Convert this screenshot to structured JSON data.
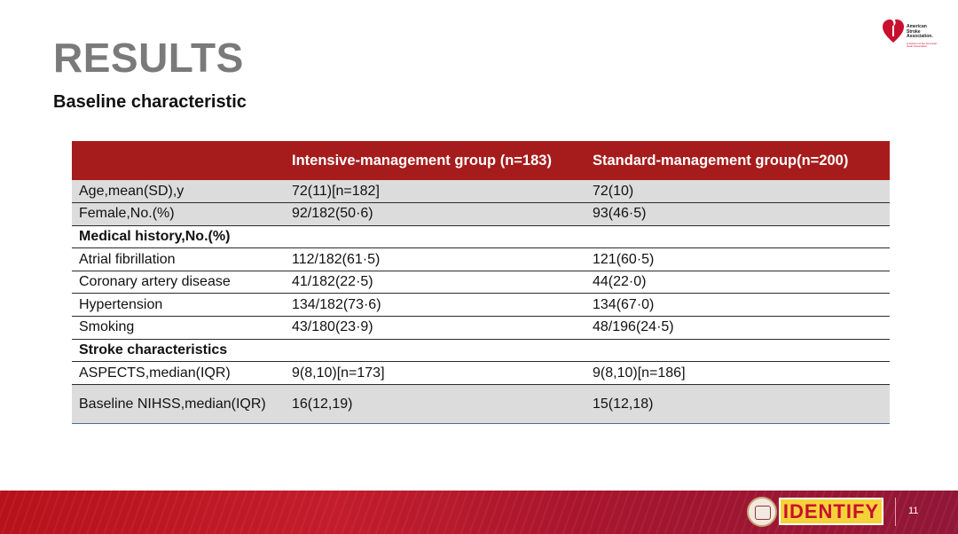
{
  "slide": {
    "title": "RESULTS",
    "subtitle": "Baseline characteristic",
    "page_number": "11"
  },
  "logos": {
    "asa": {
      "icon": "heart-torch-icon",
      "lines": [
        "American",
        "Stroke",
        "Association."
      ],
      "tagline": "A division of the American Heart Association",
      "color": "#c8102e"
    },
    "identify": {
      "text": "IDENTIFY",
      "bg": "#f6d23a",
      "text_color": "#c8102e"
    },
    "seal": {
      "icon": "university-seal-icon"
    }
  },
  "colors": {
    "header_bg": "#a61c1c",
    "shade_bg": "#dcdcdc",
    "title": "#7a7a7a",
    "footer": "#b5121b"
  },
  "table": {
    "headers": [
      "",
      "Intensive-management group (n=183)",
      "Standard-management group(n=200)"
    ],
    "rows": [
      {
        "cells": [
          "Age,mean(SD),y",
          "72(11)[n=182]",
          "72(10)"
        ],
        "shade": true
      },
      {
        "cells": [
          "Female,No.(%)",
          "92/182(50·6)",
          "93(46·5)"
        ],
        "shade": true
      },
      {
        "cells": [
          "Medical history,No.(%)",
          "",
          ""
        ],
        "section": true
      },
      {
        "cells": [
          "Atrial fibrillation",
          "112/182(61·5)",
          "121(60·5)"
        ]
      },
      {
        "cells": [
          "Coronary artery disease",
          "41/182(22·5)",
          "44(22·0)"
        ]
      },
      {
        "cells": [
          "Hypertension",
          "134/182(73·6)",
          "134(67·0)"
        ]
      },
      {
        "cells": [
          "Smoking",
          "43/180(23·9)",
          "48/196(24·5)"
        ]
      },
      {
        "cells": [
          "Stroke characteristics",
          "",
          ""
        ],
        "section": true
      },
      {
        "cells": [
          "ASPECTS,median(IQR)",
          "9(8,10)[n=173]",
          "9(8,10)[n=186]"
        ]
      },
      {
        "cells": [
          "Baseline NIHSS,median(IQR)",
          "16(12,19)",
          "15(12,18)"
        ],
        "shade": true,
        "tall": true
      }
    ]
  }
}
